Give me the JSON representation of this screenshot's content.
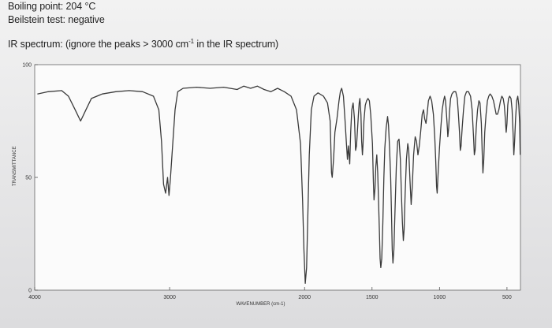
{
  "document": {
    "boiling_point": "Boiling point: 204 °C",
    "beilstein": "Beilstein test: negative",
    "ir_label_start": "IR spectrum: (ignore the peaks > 3000 cm",
    "ir_label_sup": "-1",
    "ir_label_end": " in the IR spectrum)"
  },
  "chart_data": {
    "type": "line",
    "title": "",
    "xlabel": "WAVENUMBER (cm-1)",
    "ylabel": "TRANSMITTANCE",
    "xlim": [
      4000,
      400
    ],
    "ylim": [
      0,
      100
    ],
    "x_ticks": [
      {
        "value": 4000,
        "label": "4000"
      },
      {
        "value": 3000,
        "label": "3000"
      },
      {
        "value": 2000,
        "label": "2000"
      },
      {
        "value": 1500,
        "label": "1500"
      },
      {
        "value": 1000,
        "label": "1000"
      },
      {
        "value": 500,
        "label": "500"
      }
    ],
    "y_ticks": [
      {
        "value": 100,
        "label": "100"
      },
      {
        "value": 50,
        "label": "50"
      },
      {
        "value": 0,
        "label": "0"
      }
    ],
    "grid": false,
    "series": [
      {
        "color": "#3a3a3a",
        "points": [
          [
            3980,
            87
          ],
          [
            3900,
            88
          ],
          [
            3800,
            88.5
          ],
          [
            3750,
            86
          ],
          [
            3700,
            80
          ],
          [
            3660,
            75
          ],
          [
            3620,
            80
          ],
          [
            3580,
            85
          ],
          [
            3500,
            87
          ],
          [
            3400,
            88
          ],
          [
            3300,
            88.5
          ],
          [
            3200,
            88
          ],
          [
            3120,
            86
          ],
          [
            3080,
            80
          ],
          [
            3060,
            66
          ],
          [
            3045,
            47
          ],
          [
            3030,
            43
          ],
          [
            3015,
            50
          ],
          [
            3005,
            42
          ],
          [
            2995,
            49
          ],
          [
            2980,
            62
          ],
          [
            2960,
            80
          ],
          [
            2940,
            88
          ],
          [
            2900,
            89.5
          ],
          [
            2800,
            90
          ],
          [
            2700,
            89.5
          ],
          [
            2600,
            90
          ],
          [
            2500,
            89
          ],
          [
            2450,
            90.5
          ],
          [
            2400,
            89.5
          ],
          [
            2350,
            90.5
          ],
          [
            2300,
            89
          ],
          [
            2250,
            88
          ],
          [
            2200,
            89.5
          ],
          [
            2150,
            88
          ],
          [
            2100,
            86
          ],
          [
            2060,
            80
          ],
          [
            2030,
            65
          ],
          [
            2015,
            40
          ],
          [
            2005,
            18
          ],
          [
            1995,
            3
          ],
          [
            1985,
            10
          ],
          [
            1975,
            35
          ],
          [
            1965,
            60
          ],
          [
            1950,
            80
          ],
          [
            1930,
            86
          ],
          [
            1900,
            87.5
          ],
          [
            1860,
            86
          ],
          [
            1830,
            83
          ],
          [
            1810,
            75
          ],
          [
            1800,
            52
          ],
          [
            1795,
            50
          ],
          [
            1785,
            58
          ],
          [
            1775,
            70
          ],
          [
            1760,
            76
          ],
          [
            1745,
            84
          ],
          [
            1735,
            88
          ],
          [
            1725,
            89.5
          ],
          [
            1712,
            86
          ],
          [
            1700,
            75
          ],
          [
            1690,
            65
          ],
          [
            1682,
            58
          ],
          [
            1675,
            64
          ],
          [
            1665,
            56
          ],
          [
            1658,
            70
          ],
          [
            1650,
            80
          ],
          [
            1640,
            83
          ],
          [
            1630,
            76
          ],
          [
            1622,
            62
          ],
          [
            1615,
            64
          ],
          [
            1607,
            72
          ],
          [
            1600,
            79
          ],
          [
            1595,
            83
          ],
          [
            1590,
            85
          ],
          [
            1582,
            78
          ],
          [
            1577,
            66
          ],
          [
            1571,
            60
          ],
          [
            1567,
            64
          ],
          [
            1560,
            75
          ],
          [
            1550,
            82
          ],
          [
            1540,
            84
          ],
          [
            1530,
            85
          ],
          [
            1520,
            84
          ],
          [
            1510,
            78
          ],
          [
            1497,
            65
          ],
          [
            1490,
            48
          ],
          [
            1485,
            40
          ],
          [
            1478,
            45
          ],
          [
            1472,
            55
          ],
          [
            1465,
            60
          ],
          [
            1458,
            52
          ],
          [
            1452,
            40
          ],
          [
            1445,
            25
          ],
          [
            1440,
            14
          ],
          [
            1435,
            10
          ],
          [
            1428,
            14
          ],
          [
            1420,
            30
          ],
          [
            1412,
            50
          ],
          [
            1405,
            63
          ],
          [
            1395,
            72
          ],
          [
            1385,
            77
          ],
          [
            1378,
            73
          ],
          [
            1370,
            63
          ],
          [
            1362,
            50
          ],
          [
            1356,
            35
          ],
          [
            1350,
            18
          ],
          [
            1345,
            12
          ],
          [
            1338,
            18
          ],
          [
            1330,
            35
          ],
          [
            1320,
            55
          ],
          [
            1310,
            66
          ],
          [
            1300,
            67
          ],
          [
            1290,
            58
          ],
          [
            1282,
            42
          ],
          [
            1275,
            30
          ],
          [
            1268,
            22
          ],
          [
            1262,
            27
          ],
          [
            1255,
            42
          ],
          [
            1245,
            58
          ],
          [
            1235,
            65
          ],
          [
            1228,
            62
          ],
          [
            1218,
            48
          ],
          [
            1210,
            38
          ],
          [
            1202,
            46
          ],
          [
            1192,
            60
          ],
          [
            1180,
            68
          ],
          [
            1170,
            66
          ],
          [
            1160,
            60
          ],
          [
            1150,
            64
          ],
          [
            1140,
            70
          ],
          [
            1128,
            78
          ],
          [
            1118,
            80
          ],
          [
            1110,
            76
          ],
          [
            1100,
            74
          ],
          [
            1092,
            78
          ],
          [
            1082,
            84
          ],
          [
            1070,
            86
          ],
          [
            1058,
            84
          ],
          [
            1045,
            78
          ],
          [
            1035,
            68
          ],
          [
            1028,
            58
          ],
          [
            1022,
            46
          ],
          [
            1017,
            43
          ],
          [
            1010,
            52
          ],
          [
            1000,
            63
          ],
          [
            990,
            72
          ],
          [
            980,
            80
          ],
          [
            970,
            84
          ],
          [
            962,
            86
          ],
          [
            955,
            84
          ],
          [
            948,
            78
          ],
          [
            942,
            72
          ],
          [
            938,
            68
          ],
          [
            932,
            72
          ],
          [
            926,
            79
          ],
          [
            918,
            85
          ],
          [
            908,
            87
          ],
          [
            895,
            88
          ],
          [
            880,
            88
          ],
          [
            868,
            85
          ],
          [
            860,
            78
          ],
          [
            852,
            70
          ],
          [
            846,
            62
          ],
          [
            840,
            64
          ],
          [
            832,
            72
          ],
          [
            822,
            80
          ],
          [
            812,
            86
          ],
          [
            800,
            88
          ],
          [
            785,
            88
          ],
          [
            770,
            86
          ],
          [
            758,
            80
          ],
          [
            748,
            68
          ],
          [
            742,
            60
          ],
          [
            736,
            62
          ],
          [
            728,
            72
          ],
          [
            718,
            80
          ],
          [
            708,
            84
          ],
          [
            700,
            83
          ],
          [
            690,
            74
          ],
          [
            683,
            60
          ],
          [
            678,
            52
          ],
          [
            672,
            58
          ],
          [
            665,
            70
          ],
          [
            655,
            78
          ],
          [
            645,
            84
          ],
          [
            635,
            86
          ],
          [
            625,
            87
          ],
          [
            612,
            86
          ],
          [
            600,
            84
          ],
          [
            590,
            81
          ],
          [
            580,
            78
          ],
          [
            570,
            78
          ],
          [
            560,
            80
          ],
          [
            548,
            84
          ],
          [
            538,
            86
          ],
          [
            528,
            85
          ],
          [
            520,
            82
          ],
          [
            512,
            76
          ],
          [
            506,
            70
          ],
          [
            500,
            74
          ],
          [
            494,
            82
          ],
          [
            488,
            85
          ],
          [
            480,
            86
          ],
          [
            470,
            85
          ],
          [
            462,
            80
          ],
          [
            455,
            70
          ],
          [
            449,
            60
          ],
          [
            443,
            66
          ],
          [
            436,
            76
          ],
          [
            428,
            84
          ],
          [
            420,
            86
          ],
          [
            412,
            82
          ],
          [
            406,
            74
          ],
          [
            402,
            60
          ]
        ]
      }
    ]
  }
}
